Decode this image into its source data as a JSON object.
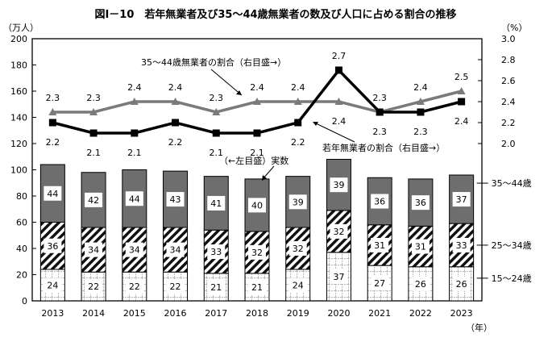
{
  "chart_data": {
    "type": "bar+line",
    "title": "図Ⅰ－10　若年無業者及び35～44歳無業者の数及び人口に占める割合の推移",
    "ylabel_left": "（万人）",
    "ylabel_right": "（%）",
    "xlabel": "（年）",
    "ylim_left": [
      0,
      200
    ],
    "ylim_right": [
      2.0,
      3.0
    ],
    "yticks_left": [
      "0",
      "20",
      "40",
      "60",
      "80",
      "100",
      "120",
      "140",
      "160",
      "180",
      "200"
    ],
    "yticks_right": [
      "2.0",
      "2.2",
      "2.4",
      "2.6",
      "2.8",
      "3.0"
    ],
    "categories": [
      "2013",
      "2014",
      "2015",
      "2016",
      "2017",
      "2018",
      "2019",
      "2020",
      "2021",
      "2022",
      "2023"
    ],
    "bar_series": [
      {
        "name": "15～24歳",
        "values": [
          24,
          22,
          22,
          22,
          21,
          21,
          24,
          37,
          27,
          26,
          26
        ],
        "pattern": "light-grid"
      },
      {
        "name": "25～34歳",
        "values": [
          36,
          34,
          34,
          34,
          33,
          32,
          32,
          32,
          31,
          31,
          33
        ],
        "pattern": "diagonal-hatch"
      },
      {
        "name": "35～44歳",
        "values": [
          44,
          42,
          44,
          43,
          41,
          40,
          39,
          39,
          36,
          36,
          37
        ],
        "color": "#6e6e6e"
      }
    ],
    "line_series": [
      {
        "name": "35～44歳無業者の割合（右目盛→）",
        "values": [
          2.3,
          2.3,
          2.4,
          2.4,
          2.3,
          2.4,
          2.4,
          2.4,
          2.3,
          2.4,
          2.5
        ],
        "color": "#7a7a7a",
        "axis": "right"
      },
      {
        "name": "若年無業者の割合（右目盛→）",
        "values": [
          2.2,
          2.1,
          2.1,
          2.2,
          2.1,
          2.1,
          2.2,
          2.7,
          2.3,
          2.3,
          2.4
        ],
        "color": "#000000",
        "axis": "right"
      }
    ],
    "bar_annotation": "（←左目盛）実数",
    "grid": false
  }
}
